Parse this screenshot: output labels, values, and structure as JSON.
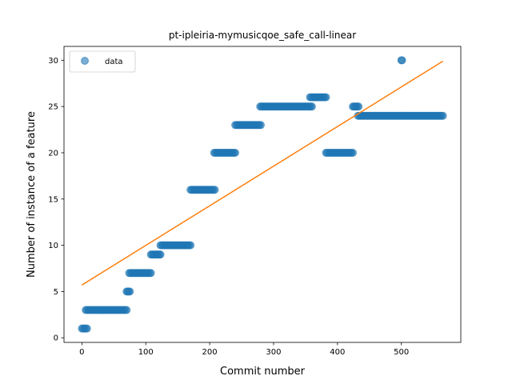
{
  "chart_data": {
    "type": "scatter",
    "title": "pt-ipleiria-mymusicqoe_safe_call-linear",
    "xlabel": "Commit number",
    "ylabel": "Number of instance of a feature",
    "xlim": [
      -28,
      593
    ],
    "ylim": [
      -0.5,
      31.5
    ],
    "xticks": [
      0,
      100,
      200,
      300,
      400,
      500
    ],
    "yticks": [
      0,
      5,
      10,
      15,
      20,
      25,
      30
    ],
    "legend": {
      "position": "top-left",
      "entries": [
        {
          "label": "data"
        }
      ]
    },
    "colors": {
      "data": "#1f77b4",
      "fit": "#ff7f0e"
    },
    "segments": [
      {
        "x_start": 0,
        "x_end": 8,
        "y": 1
      },
      {
        "x_start": 6,
        "x_end": 70,
        "y": 3
      },
      {
        "x_start": 70,
        "x_end": 75,
        "y": 5
      },
      {
        "x_start": 74,
        "x_end": 108,
        "y": 7
      },
      {
        "x_start": 108,
        "x_end": 123,
        "y": 9
      },
      {
        "x_start": 123,
        "x_end": 170,
        "y": 10
      },
      {
        "x_start": 170,
        "x_end": 208,
        "y": 16
      },
      {
        "x_start": 207,
        "x_end": 240,
        "y": 20
      },
      {
        "x_start": 240,
        "x_end": 280,
        "y": 23
      },
      {
        "x_start": 279,
        "x_end": 360,
        "y": 25
      },
      {
        "x_start": 357,
        "x_end": 382,
        "y": 26
      },
      {
        "x_start": 382,
        "x_end": 424,
        "y": 20
      },
      {
        "x_start": 424,
        "x_end": 433,
        "y": 25
      },
      {
        "x_start": 432,
        "x_end": 500,
        "y": 24
      },
      {
        "x_start": 500,
        "x_end": 501,
        "y": 30
      },
      {
        "x_start": 502,
        "x_end": 565,
        "y": 24
      }
    ],
    "fit_line": {
      "x": [
        0,
        565
      ],
      "y": [
        5.7,
        29.9
      ]
    }
  }
}
